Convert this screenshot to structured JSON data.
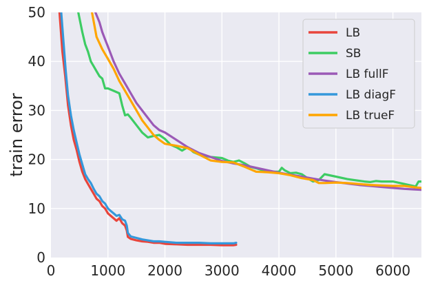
{
  "chart_data": {
    "type": "line",
    "xlabel": "",
    "ylabel": "train error",
    "xlim": [
      0,
      6500
    ],
    "ylim": [
      0,
      50
    ],
    "xticks": [
      0,
      1000,
      2000,
      3000,
      4000,
      5000,
      6000
    ],
    "yticks": [
      0,
      10,
      20,
      30,
      40,
      50
    ],
    "grid": true,
    "legend_position": "top-right",
    "series": [
      {
        "name": "LB",
        "color": "#e8453c",
        "x": [
          150,
          200,
          250,
          300,
          350,
          400,
          450,
          500,
          550,
          600,
          650,
          700,
          750,
          800,
          850,
          900,
          950,
          1000,
          1050,
          1100,
          1150,
          1200,
          1250,
          1300,
          1330,
          1350,
          1400,
          1500,
          1600,
          1700,
          1800,
          1900,
          2000,
          2200,
          2400,
          2600,
          2800,
          3000,
          3200,
          3250
        ],
        "y": [
          50,
          42,
          37,
          31,
          27,
          24,
          22,
          19.5,
          17.5,
          16,
          15,
          14,
          13,
          12,
          11.5,
          10.5,
          10,
          9,
          8.5,
          8,
          7.5,
          8,
          7,
          6.5,
          5.5,
          4.2,
          3.8,
          3.5,
          3.3,
          3.2,
          3.0,
          3.0,
          2.8,
          2.7,
          2.6,
          2.6,
          2.6,
          2.5,
          2.5,
          2.6
        ]
      },
      {
        "name": "SB",
        "color": "#3dcc63",
        "x": [
          480,
          550,
          600,
          650,
          700,
          750,
          800,
          850,
          900,
          950,
          1000,
          1100,
          1200,
          1250,
          1300,
          1350,
          1400,
          1500,
          1600,
          1700,
          1800,
          1900,
          2000,
          2100,
          2200,
          2300,
          2400,
          2500,
          2600,
          2800,
          3000,
          3100,
          3200,
          3300,
          3400,
          3500,
          3600,
          3800,
          4000,
          4050,
          4100,
          4200,
          4300,
          4400,
          4500,
          4600,
          4700,
          4800,
          5000,
          5200,
          5500,
          5600,
          5700,
          5800,
          6000,
          6200,
          6400,
          6450,
          6500
        ],
        "y": [
          50,
          46,
          43.5,
          42,
          40,
          39,
          38,
          37,
          36.5,
          34.5,
          34.5,
          34,
          33.5,
          31,
          29,
          29.2,
          28.5,
          27,
          25.5,
          24.5,
          24.8,
          25,
          24.2,
          23,
          22.5,
          21.8,
          22.5,
          21.5,
          21,
          20.5,
          20.3,
          19.8,
          19.5,
          19.8,
          19.2,
          18.5,
          18.2,
          17.5,
          17.5,
          18.3,
          17.8,
          17.2,
          17.3,
          17,
          16.2,
          15.5,
          15.8,
          17,
          16.5,
          16,
          15.5,
          15.4,
          15.6,
          15.5,
          15.5,
          15,
          14.5,
          15.5,
          15.5
        ]
      },
      {
        "name": "LB fullF",
        "color": "#9b59b6",
        "x": [
          780,
          850,
          900,
          950,
          1000,
          1100,
          1200,
          1300,
          1400,
          1500,
          1600,
          1700,
          1800,
          1900,
          2000,
          2200,
          2400,
          2600,
          2800,
          3000,
          3200,
          3400,
          3600,
          3800,
          4000,
          4200,
          4400,
          4600,
          4800,
          5000,
          5200,
          5400,
          5600,
          5800,
          6000,
          6200,
          6350,
          6500
        ],
        "y": [
          50,
          48,
          46,
          44.5,
          43,
          40,
          37.5,
          35.5,
          33.5,
          31.5,
          30,
          28.5,
          27,
          26,
          25.5,
          24,
          22.5,
          21.3,
          20.5,
          19.7,
          19.2,
          18.8,
          18.3,
          17.8,
          17.3,
          16.9,
          16.5,
          16.1,
          15.7,
          15.4,
          15.1,
          14.8,
          14.6,
          14.4,
          14.2,
          14.0,
          13.9,
          13.8
        ]
      },
      {
        "name": "LB diagF",
        "color": "#3498db",
        "x": [
          180,
          220,
          260,
          300,
          350,
          400,
          450,
          500,
          550,
          600,
          650,
          700,
          750,
          800,
          850,
          900,
          950,
          1000,
          1050,
          1100,
          1150,
          1200,
          1250,
          1300,
          1330,
          1350,
          1400,
          1500,
          1600,
          1700,
          1800,
          1900,
          2000,
          2200,
          2400,
          2600,
          2800,
          3000,
          3200,
          3250
        ],
        "y": [
          50,
          44,
          38,
          33,
          29,
          26,
          23.5,
          21,
          19,
          17,
          16,
          15.2,
          14,
          13,
          12.5,
          11.5,
          11,
          10,
          9.5,
          9,
          8.5,
          8.7,
          7.8,
          7.5,
          6.5,
          5.0,
          4.3,
          4.0,
          3.7,
          3.5,
          3.3,
          3.3,
          3.2,
          3.0,
          3.0,
          3.0,
          2.9,
          2.9,
          2.9,
          3.0
        ]
      },
      {
        "name": "LB trueF",
        "color": "#ffa500",
        "x": [
          720,
          800,
          900,
          1000,
          1100,
          1200,
          1300,
          1400,
          1500,
          1600,
          1700,
          1800,
          1900,
          2000,
          2200,
          2400,
          2600,
          2800,
          3000,
          3200,
          3400,
          3600,
          3800,
          4000,
          4200,
          4400,
          4600,
          4700,
          4800,
          5000,
          5200,
          5400,
          5600,
          5800,
          6000,
          6200,
          6400,
          6500
        ],
        "y": [
          50,
          45,
          42.5,
          40.5,
          38.5,
          36,
          34,
          32,
          30,
          28,
          26.5,
          25,
          24,
          23.2,
          22.8,
          22.3,
          21,
          19.8,
          19.5,
          19.4,
          18.5,
          17.5,
          17.4,
          17.2,
          16.8,
          16.2,
          15.8,
          15.2,
          15.2,
          15.3,
          15.2,
          15.0,
          14.8,
          14.7,
          14.6,
          14.6,
          14.3,
          14.2
        ]
      }
    ]
  }
}
